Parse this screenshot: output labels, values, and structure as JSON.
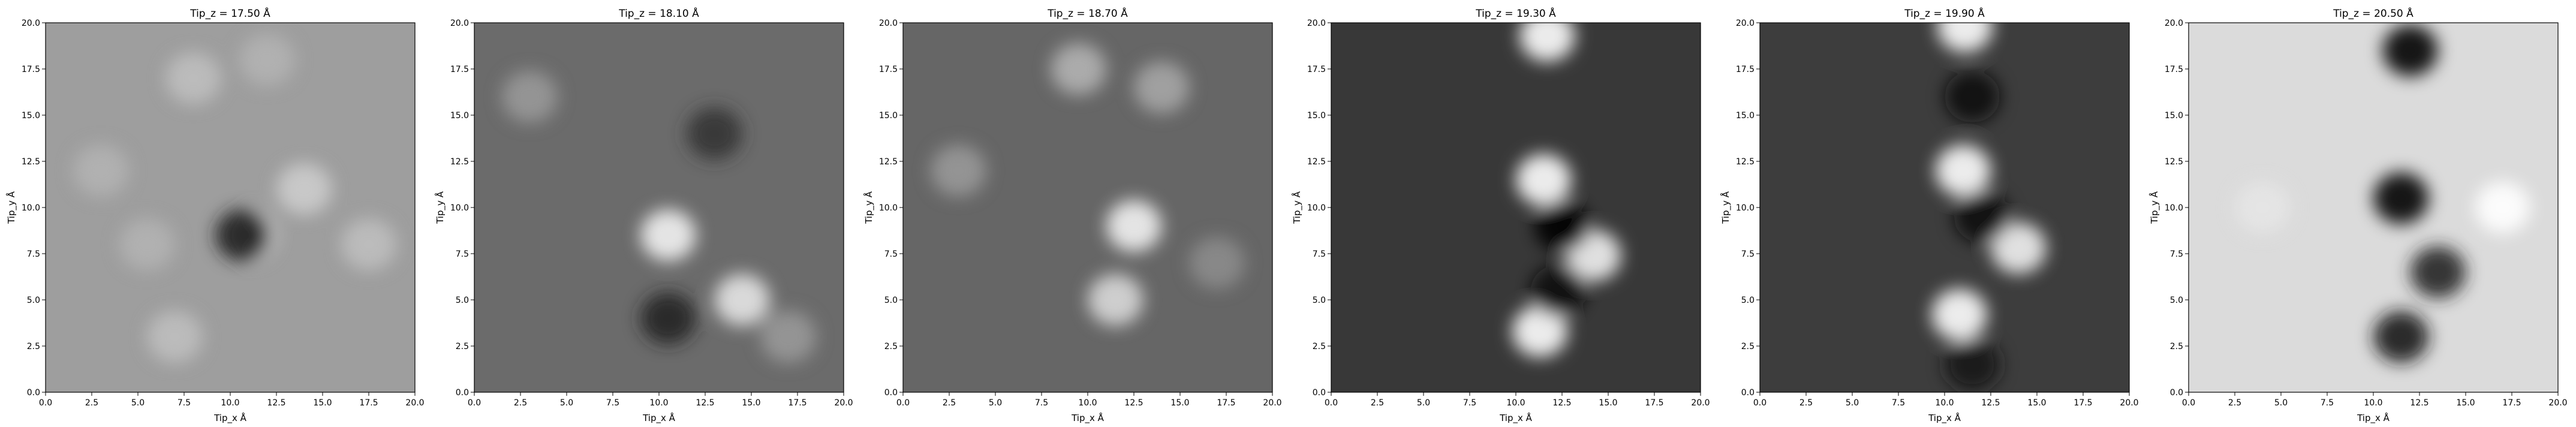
{
  "chart_data": [
    {
      "type": "heatmap",
      "title": "Tip_z = 17.50 Å",
      "xlabel": "Tip_x Å",
      "ylabel": "Tip_y Å",
      "xlim": [
        0,
        20
      ],
      "ylim": [
        0,
        20
      ],
      "x_ticks": [
        "0.0",
        "2.5",
        "5.0",
        "7.5",
        "10.0",
        "12.5",
        "15.0",
        "17.5",
        "20.0"
      ],
      "y_ticks": [
        "0.0",
        "2.5",
        "5.0",
        "7.5",
        "10.0",
        "12.5",
        "15.0",
        "17.5",
        "20.0"
      ],
      "colormap": "gray",
      "grid": false,
      "features": [
        {
          "x": 11.0,
          "y": 8.5,
          "value": 0.9
        },
        {
          "x": 8.0,
          "y": 17.0,
          "value": 0.75
        },
        {
          "x": 14.0,
          "y": 11.0,
          "value": 0.8
        },
        {
          "x": 3.0,
          "y": 12.0,
          "value": 0.7
        },
        {
          "x": 17.5,
          "y": 8.0,
          "value": 0.75
        },
        {
          "x": 12.0,
          "y": 18.0,
          "value": 0.7
        },
        {
          "x": 7.0,
          "y": 3.0,
          "value": 0.75
        },
        {
          "x": 5.5,
          "y": 8.0,
          "value": 0.7
        },
        {
          "x": 10.7,
          "y": 8.5,
          "value": 0.1
        }
      ]
    },
    {
      "type": "heatmap",
      "title": "Tip_z = 18.10 Å",
      "xlabel": "Tip_x Å",
      "ylabel": "Tip_y Å",
      "xlim": [
        0,
        20
      ],
      "ylim": [
        0,
        20
      ],
      "x_ticks": [
        "0.0",
        "2.5",
        "5.0",
        "7.5",
        "10.0",
        "12.5",
        "15.0",
        "17.5",
        "20.0"
      ],
      "y_ticks": [
        "0.0",
        "2.5",
        "5.0",
        "7.5",
        "10.0",
        "12.5",
        "15.0",
        "17.5",
        "20.0"
      ],
      "colormap": "gray",
      "grid": false,
      "features": [
        {
          "x": 10.5,
          "y": 8.5,
          "value": 0.95
        },
        {
          "x": 14.5,
          "y": 5.0,
          "value": 0.9
        },
        {
          "x": 10.5,
          "y": 4.0,
          "value": 0.15
        },
        {
          "x": 13.0,
          "y": 14.0,
          "value": 0.2
        },
        {
          "x": 3.0,
          "y": 16.0,
          "value": 0.6
        },
        {
          "x": 17.0,
          "y": 3.0,
          "value": 0.6
        }
      ]
    },
    {
      "type": "heatmap",
      "title": "Tip_z = 18.70 Å",
      "xlabel": "Tip_x Å",
      "ylabel": "Tip_y Å",
      "xlim": [
        0,
        20
      ],
      "ylim": [
        0,
        20
      ],
      "x_ticks": [
        "0.0",
        "2.5",
        "5.0",
        "7.5",
        "10.0",
        "12.5",
        "15.0",
        "17.5",
        "20.0"
      ],
      "y_ticks": [
        "0.0",
        "2.5",
        "5.0",
        "7.5",
        "10.0",
        "12.5",
        "15.0",
        "17.5",
        "20.0"
      ],
      "colormap": "gray",
      "grid": false,
      "features": [
        {
          "x": 12.5,
          "y": 9.0,
          "value": 0.95
        },
        {
          "x": 11.5,
          "y": 5.0,
          "value": 0.85
        },
        {
          "x": 9.5,
          "y": 17.5,
          "value": 0.7
        },
        {
          "x": 14.0,
          "y": 16.5,
          "value": 0.65
        },
        {
          "x": 3.0,
          "y": 12.0,
          "value": 0.6
        },
        {
          "x": 17.0,
          "y": 7.0,
          "value": 0.55
        }
      ]
    },
    {
      "type": "heatmap",
      "title": "Tip_z = 19.30 Å",
      "xlabel": "Tip_x Å",
      "ylabel": "Tip_y Å",
      "xlim": [
        0,
        20
      ],
      "ylim": [
        0,
        20
      ],
      "x_ticks": [
        "0.0",
        "2.5",
        "5.0",
        "7.5",
        "10.0",
        "12.5",
        "15.0",
        "17.5",
        "20.0"
      ],
      "y_ticks": [
        "0.0",
        "2.5",
        "5.0",
        "7.5",
        "10.0",
        "12.5",
        "15.0",
        "17.5",
        "20.0"
      ],
      "colormap": "gray",
      "grid": false,
      "features": [
        {
          "x": 11.7,
          "y": 19.3,
          "value": 1.0
        },
        {
          "x": 11.5,
          "y": 11.5,
          "value": 1.0
        },
        {
          "x": 14.2,
          "y": 7.4,
          "value": 0.95
        },
        {
          "x": 11.3,
          "y": 3.3,
          "value": 1.0
        },
        {
          "x": 12.5,
          "y": 9.0,
          "value": 0.0
        },
        {
          "x": 12.3,
          "y": 5.5,
          "value": 0.05
        }
      ]
    },
    {
      "type": "heatmap",
      "title": "Tip_z = 19.90 Å",
      "xlabel": "Tip_x Å",
      "ylabel": "Tip_y Å",
      "xlim": [
        0,
        20
      ],
      "ylim": [
        0,
        20
      ],
      "x_ticks": [
        "0.0",
        "2.5",
        "5.0",
        "7.5",
        "10.0",
        "12.5",
        "15.0",
        "17.5",
        "20.0"
      ],
      "y_ticks": [
        "0.0",
        "2.5",
        "5.0",
        "7.5",
        "10.0",
        "12.5",
        "15.0",
        "17.5",
        "20.0"
      ],
      "colormap": "gray",
      "grid": false,
      "features": [
        {
          "x": 11.1,
          "y": 19.8,
          "value": 1.0
        },
        {
          "x": 11.0,
          "y": 12.0,
          "value": 1.0
        },
        {
          "x": 14.0,
          "y": 7.8,
          "value": 0.95
        },
        {
          "x": 10.8,
          "y": 4.2,
          "value": 1.0
        },
        {
          "x": 11.5,
          "y": 16.0,
          "value": 0.05
        },
        {
          "x": 12.0,
          "y": 9.5,
          "value": 0.05
        },
        {
          "x": 11.5,
          "y": 1.5,
          "value": 0.1
        }
      ]
    },
    {
      "type": "heatmap",
      "title": "Tip_z = 20.50 Å",
      "xlabel": "Tip_x Å",
      "ylabel": "Tip_y Å",
      "xlim": [
        0,
        20
      ],
      "ylim": [
        0,
        20
      ],
      "x_ticks": [
        "0.0",
        "2.5",
        "5.0",
        "7.5",
        "10.0",
        "12.5",
        "15.0",
        "17.5",
        "20.0"
      ],
      "y_ticks": [
        "0.0",
        "2.5",
        "5.0",
        "7.5",
        "10.0",
        "12.5",
        "15.0",
        "17.5",
        "20.0"
      ],
      "colormap": "gray",
      "grid": false,
      "features": [
        {
          "x": 12.0,
          "y": 18.5,
          "value": 0.0
        },
        {
          "x": 11.5,
          "y": 10.5,
          "value": 0.0
        },
        {
          "x": 13.5,
          "y": 6.5,
          "value": 0.15
        },
        {
          "x": 11.5,
          "y": 3.0,
          "value": 0.1
        },
        {
          "x": 17.0,
          "y": 10.0,
          "value": 1.0
        },
        {
          "x": 4.0,
          "y": 10.0,
          "value": 0.9
        }
      ]
    }
  ]
}
